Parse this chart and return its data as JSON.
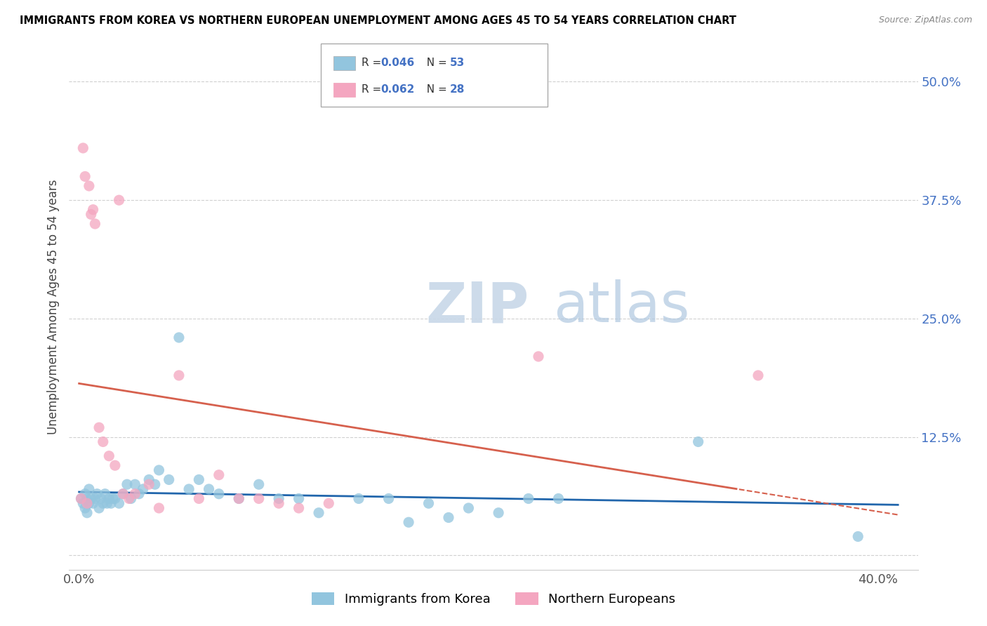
{
  "title": "IMMIGRANTS FROM KOREA VS NORTHERN EUROPEAN UNEMPLOYMENT AMONG AGES 45 TO 54 YEARS CORRELATION CHART",
  "source": "Source: ZipAtlas.com",
  "ylabel": "Unemployment Among Ages 45 to 54 years",
  "xlim": [
    -0.005,
    0.42
  ],
  "ylim": [
    -0.015,
    0.54
  ],
  "yticks_right": [
    0.0,
    0.125,
    0.25,
    0.375,
    0.5
  ],
  "yticklabels_right": [
    "",
    "12.5%",
    "25.0%",
    "37.5%",
    "50.0%"
  ],
  "R_korea": 0.046,
  "N_korea": 53,
  "R_north_eu": 0.062,
  "N_north_eu": 28,
  "korea_color": "#92c5de",
  "north_eu_color": "#f4a6c0",
  "korea_line_color": "#2166ac",
  "north_eu_line_color": "#d6604d",
  "korea_x": [
    0.001,
    0.002,
    0.003,
    0.003,
    0.004,
    0.004,
    0.005,
    0.005,
    0.006,
    0.007,
    0.008,
    0.009,
    0.01,
    0.011,
    0.012,
    0.013,
    0.014,
    0.015,
    0.016,
    0.017,
    0.018,
    0.02,
    0.022,
    0.024,
    0.026,
    0.028,
    0.03,
    0.032,
    0.035,
    0.038,
    0.04,
    0.045,
    0.05,
    0.055,
    0.06,
    0.065,
    0.07,
    0.08,
    0.09,
    0.1,
    0.11,
    0.12,
    0.14,
    0.155,
    0.165,
    0.175,
    0.185,
    0.195,
    0.21,
    0.225,
    0.24,
    0.31,
    0.39
  ],
  "korea_y": [
    0.06,
    0.055,
    0.05,
    0.065,
    0.045,
    0.06,
    0.055,
    0.07,
    0.06,
    0.055,
    0.06,
    0.065,
    0.05,
    0.06,
    0.055,
    0.065,
    0.055,
    0.06,
    0.055,
    0.06,
    0.06,
    0.055,
    0.065,
    0.075,
    0.06,
    0.075,
    0.065,
    0.07,
    0.08,
    0.075,
    0.09,
    0.08,
    0.23,
    0.07,
    0.08,
    0.07,
    0.065,
    0.06,
    0.075,
    0.06,
    0.06,
    0.045,
    0.06,
    0.06,
    0.035,
    0.055,
    0.04,
    0.05,
    0.045,
    0.06,
    0.06,
    0.12,
    0.02
  ],
  "north_eu_x": [
    0.001,
    0.002,
    0.003,
    0.004,
    0.005,
    0.006,
    0.007,
    0.008,
    0.01,
    0.012,
    0.015,
    0.018,
    0.02,
    0.022,
    0.025,
    0.028,
    0.035,
    0.04,
    0.05,
    0.06,
    0.07,
    0.08,
    0.09,
    0.1,
    0.11,
    0.125,
    0.23,
    0.34
  ],
  "north_eu_y": [
    0.06,
    0.43,
    0.4,
    0.055,
    0.39,
    0.36,
    0.365,
    0.35,
    0.135,
    0.12,
    0.105,
    0.095,
    0.375,
    0.065,
    0.06,
    0.065,
    0.075,
    0.05,
    0.19,
    0.06,
    0.085,
    0.06,
    0.06,
    0.055,
    0.05,
    0.055,
    0.21,
    0.19
  ]
}
